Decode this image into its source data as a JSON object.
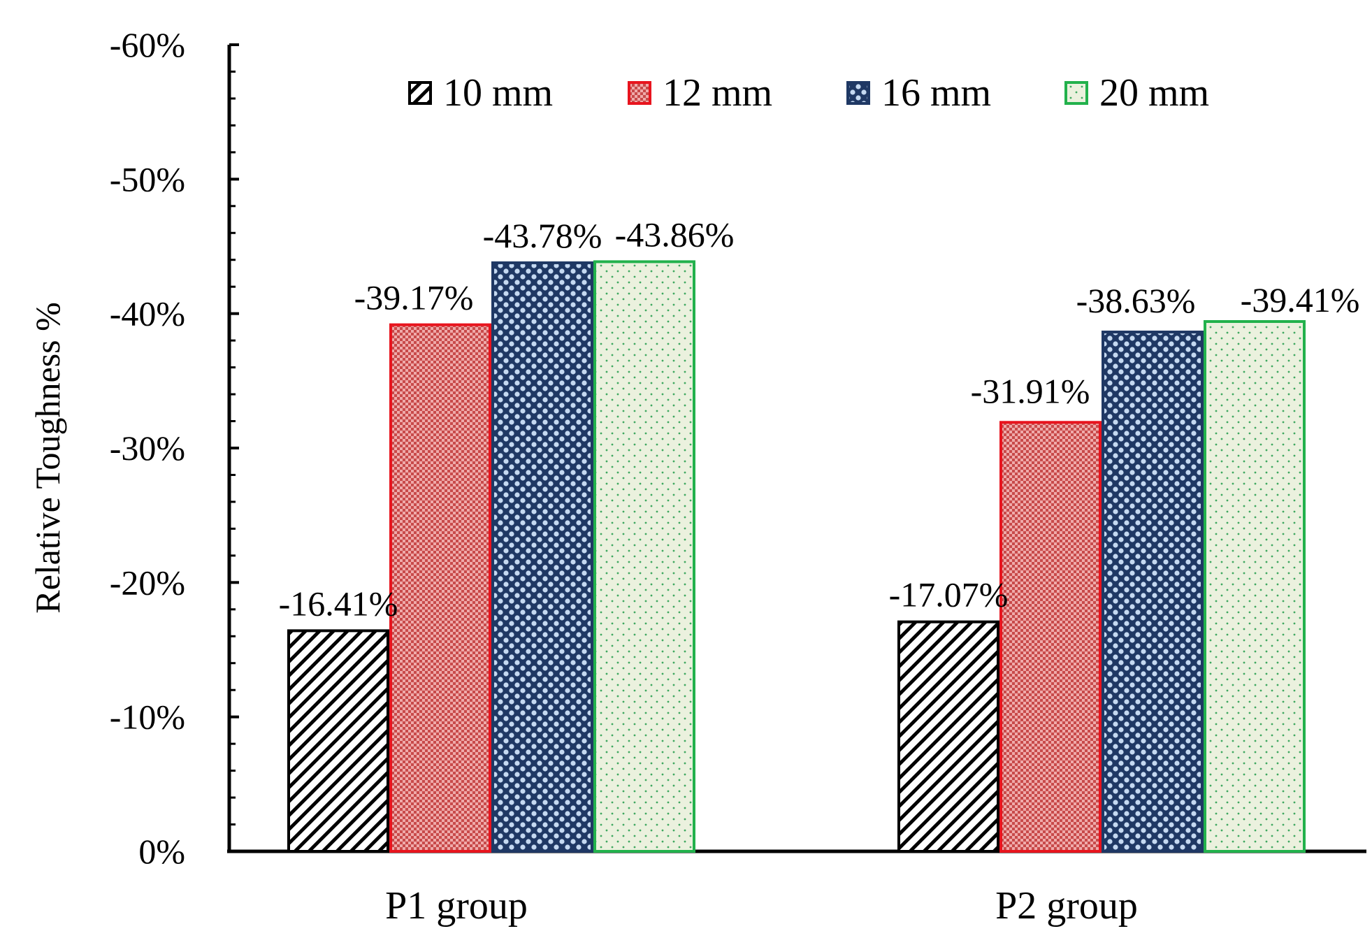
{
  "chart_data": {
    "type": "bar",
    "title": "",
    "xlabel": "",
    "ylabel": "Relative Toughness %",
    "ylim": [
      0,
      -60
    ],
    "yticks": [
      0,
      -10,
      -20,
      -30,
      -40,
      -50,
      -60
    ],
    "ytick_labels": [
      "0%",
      "-10%",
      "-20%",
      "-30%",
      "-40%",
      "-50%",
      "-60%"
    ],
    "categories": [
      "P1 group",
      "P2 group"
    ],
    "legend_position": "top",
    "series": [
      {
        "name": "10 mm",
        "values": [
          -16.41,
          -17.07
        ],
        "labels": [
          "-16.41%",
          "-17.07%"
        ],
        "color": "#000000",
        "pattern": "diagonal-hatch"
      },
      {
        "name": "12 mm",
        "values": [
          -39.17,
          -31.91
        ],
        "labels": [
          "-39.17%",
          "-31.91%"
        ],
        "color": "#e8141e",
        "pattern": "red-dense-dots"
      },
      {
        "name": "16 mm",
        "values": [
          -43.78,
          -38.63
        ],
        "labels": [
          "-43.78%",
          "-38.63%"
        ],
        "color": "#1f3864",
        "pattern": "blue-checker"
      },
      {
        "name": "20 mm",
        "values": [
          -43.86,
          -39.41
        ],
        "labels": [
          "-43.86%",
          "-39.41%"
        ],
        "color": "#22b14c",
        "pattern": "green-sparse-dots"
      }
    ]
  }
}
